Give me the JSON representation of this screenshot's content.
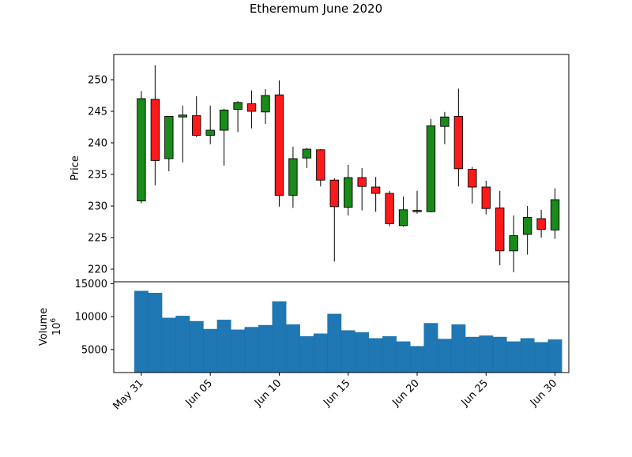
{
  "chart_data": {
    "type": "candlestick",
    "title": "Etheremum June 2020",
    "price_panel": {
      "ylabel": "Price",
      "ylim": [
        218,
        254
      ],
      "yticks": [
        220,
        225,
        230,
        235,
        240,
        245,
        250
      ]
    },
    "volume_panel": {
      "ylabel": "Volume",
      "unit_label": "10",
      "unit_exponent": "6",
      "ylim": [
        1500,
        15300
      ],
      "yticks": [
        5000,
        10000,
        15000
      ],
      "bar_color": "#1f77b4"
    },
    "xlim": [
      "2020-05-29",
      "2020-07-01"
    ],
    "xticks": [
      {
        "date": "2020-05-31",
        "label": "May 31"
      },
      {
        "date": "2020-06-05",
        "label": "Jun 05"
      },
      {
        "date": "2020-06-10",
        "label": "Jun 10"
      },
      {
        "date": "2020-06-15",
        "label": "Jun 15"
      },
      {
        "date": "2020-06-20",
        "label": "Jun 20"
      },
      {
        "date": "2020-06-25",
        "label": "Jun 25"
      },
      {
        "date": "2020-06-30",
        "label": "Jun 30"
      }
    ],
    "colors": {
      "up": "#1a8a1a",
      "down": "#ff1a1a"
    },
    "candles": [
      {
        "date": "2020-05-31",
        "open": 230.8,
        "high": 248.2,
        "low": 230.4,
        "close": 247.0,
        "volume": 13900
      },
      {
        "date": "2020-06-01",
        "open": 246.9,
        "high": 252.3,
        "low": 233.3,
        "close": 237.2,
        "volume": 13600
      },
      {
        "date": "2020-06-02",
        "open": 237.5,
        "high": 244.2,
        "low": 235.5,
        "close": 244.2,
        "volume": 9800
      },
      {
        "date": "2020-06-03",
        "open": 244.1,
        "high": 245.9,
        "low": 236.9,
        "close": 244.4,
        "volume": 10100
      },
      {
        "date": "2020-06-04",
        "open": 244.3,
        "high": 247.4,
        "low": 240.9,
        "close": 241.2,
        "volume": 9300
      },
      {
        "date": "2020-06-05",
        "open": 241.2,
        "high": 245.9,
        "low": 239.8,
        "close": 242.0,
        "volume": 8100
      },
      {
        "date": "2020-06-06",
        "open": 242.0,
        "high": 245.4,
        "low": 236.4,
        "close": 245.2,
        "volume": 9500
      },
      {
        "date": "2020-06-07",
        "open": 245.3,
        "high": 246.6,
        "low": 241.7,
        "close": 246.4,
        "volume": 8000
      },
      {
        "date": "2020-06-08",
        "open": 246.2,
        "high": 248.3,
        "low": 242.3,
        "close": 245.0,
        "volume": 8400
      },
      {
        "date": "2020-06-09",
        "open": 244.9,
        "high": 248.5,
        "low": 243.0,
        "close": 247.5,
        "volume": 8700
      },
      {
        "date": "2020-06-10",
        "open": 247.6,
        "high": 249.9,
        "low": 229.9,
        "close": 231.7,
        "volume": 12300
      },
      {
        "date": "2020-06-11",
        "open": 231.7,
        "high": 239.4,
        "low": 229.7,
        "close": 237.5,
        "volume": 8800
      },
      {
        "date": "2020-06-12",
        "open": 237.6,
        "high": 239.2,
        "low": 236.0,
        "close": 239.0,
        "volume": 7000
      },
      {
        "date": "2020-06-13",
        "open": 238.9,
        "high": 239.0,
        "low": 233.1,
        "close": 234.1,
        "volume": 7400
      },
      {
        "date": "2020-06-14",
        "open": 234.1,
        "high": 234.4,
        "low": 221.2,
        "close": 229.9,
        "volume": 10400
      },
      {
        "date": "2020-06-15",
        "open": 229.8,
        "high": 236.5,
        "low": 228.5,
        "close": 234.5,
        "volume": 7900
      },
      {
        "date": "2020-06-16",
        "open": 234.5,
        "high": 236.0,
        "low": 229.3,
        "close": 233.1,
        "volume": 7600
      },
      {
        "date": "2020-06-17",
        "open": 233.0,
        "high": 234.6,
        "low": 229.1,
        "close": 232.0,
        "volume": 6700
      },
      {
        "date": "2020-06-18",
        "open": 232.0,
        "high": 232.4,
        "low": 226.8,
        "close": 227.2,
        "volume": 7000
      },
      {
        "date": "2020-06-19",
        "open": 226.9,
        "high": 231.5,
        "low": 226.7,
        "close": 229.4,
        "volume": 6200
      },
      {
        "date": "2020-06-20",
        "open": 229.3,
        "high": 232.4,
        "low": 228.8,
        "close": 229.1,
        "volume": 5500
      },
      {
        "date": "2020-06-21",
        "open": 229.1,
        "high": 243.8,
        "low": 229.0,
        "close": 242.7,
        "volume": 9000
      },
      {
        "date": "2020-06-22",
        "open": 242.6,
        "high": 244.9,
        "low": 239.8,
        "close": 244.1,
        "volume": 6600
      },
      {
        "date": "2020-06-23",
        "open": 244.2,
        "high": 248.6,
        "low": 233.1,
        "close": 235.9,
        "volume": 8800
      },
      {
        "date": "2020-06-24",
        "open": 235.8,
        "high": 236.2,
        "low": 230.4,
        "close": 233.0,
        "volume": 6900
      },
      {
        "date": "2020-06-25",
        "open": 233.0,
        "high": 234.0,
        "low": 228.7,
        "close": 229.6,
        "volume": 7100
      },
      {
        "date": "2020-06-26",
        "open": 229.7,
        "high": 232.4,
        "low": 220.6,
        "close": 222.9,
        "volume": 6900
      },
      {
        "date": "2020-06-27",
        "open": 222.9,
        "high": 228.5,
        "low": 219.5,
        "close": 225.3,
        "volume": 6200
      },
      {
        "date": "2020-06-28",
        "open": 225.5,
        "high": 230.0,
        "low": 222.3,
        "close": 228.2,
        "volume": 6700
      },
      {
        "date": "2020-06-29",
        "open": 228.0,
        "high": 229.4,
        "low": 225.0,
        "close": 226.3,
        "volume": 6100
      },
      {
        "date": "2020-06-30",
        "open": 226.2,
        "high": 232.8,
        "low": 224.8,
        "close": 231.0,
        "volume": 6500
      }
    ]
  }
}
